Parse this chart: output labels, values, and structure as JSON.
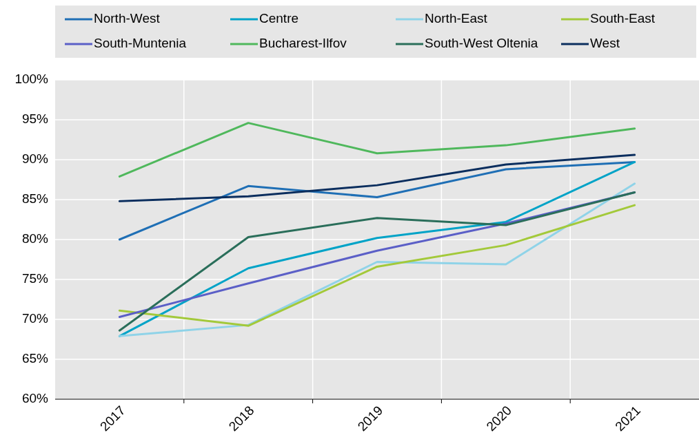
{
  "chart_data": {
    "type": "line",
    "categories": [
      "2017",
      "2018",
      "2019",
      "2020",
      "2021"
    ],
    "ylim": [
      60,
      100
    ],
    "yticks": [
      {
        "value": 60,
        "label": "60%"
      },
      {
        "value": 65,
        "label": "65%"
      },
      {
        "value": 70,
        "label": "70%"
      },
      {
        "value": 75,
        "label": "75%"
      },
      {
        "value": 80,
        "label": "80%"
      },
      {
        "value": 85,
        "label": "85%"
      },
      {
        "value": 90,
        "label": "90%"
      },
      {
        "value": 95,
        "label": "95%"
      },
      {
        "value": 100,
        "label": "100%"
      }
    ],
    "grid": true,
    "legend": "top",
    "marker": "none",
    "line_style": "solid",
    "series": [
      {
        "name": "North-West",
        "color": "#1f6fb5",
        "values": [
          80.0,
          86.7,
          85.3,
          88.8,
          89.7
        ]
      },
      {
        "name": "Centre",
        "color": "#00a3c7",
        "values": [
          67.9,
          76.4,
          80.2,
          82.2,
          89.7
        ]
      },
      {
        "name": "North-East",
        "color": "#8fd3e8",
        "values": [
          67.9,
          69.3,
          77.2,
          76.9,
          87.0
        ]
      },
      {
        "name": "South-East",
        "color": "#a3c93a",
        "values": [
          71.1,
          69.2,
          76.6,
          79.3,
          84.3
        ]
      },
      {
        "name": "South-Muntenia",
        "color": "#5b5fc7",
        "values": [
          70.3,
          74.5,
          78.6,
          82.0,
          85.9
        ]
      },
      {
        "name": "Bucharest-Ilfov",
        "color": "#4fb85c",
        "values": [
          87.9,
          94.6,
          90.8,
          91.8,
          93.9
        ]
      },
      {
        "name": "South-West Oltenia",
        "color": "#2a6e5a",
        "values": [
          68.6,
          80.3,
          82.7,
          81.8,
          85.9
        ]
      },
      {
        "name": "West",
        "color": "#0b2e5e",
        "values": [
          84.8,
          85.4,
          86.8,
          89.4,
          90.6
        ]
      }
    ]
  }
}
